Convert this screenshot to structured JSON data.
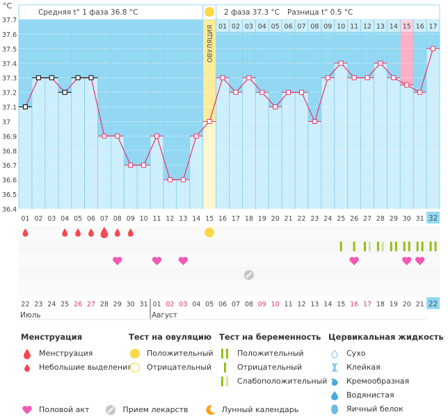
{
  "chart_data": {
    "type": "line",
    "title": "",
    "ylabel": "°C",
    "ylim": [
      36.4,
      37.7
    ],
    "yticks": [
      "37.7",
      "37.6",
      "37.5",
      "37.4",
      "37.3",
      "37.2",
      "37.1",
      "37",
      "36.9",
      "36.8",
      "36.7",
      "36.6",
      "36.5",
      "36.4"
    ],
    "cycle_days": [
      "01",
      "02",
      "03",
      "04",
      "05",
      "06",
      "07",
      "08",
      "09",
      "10",
      "11",
      "12",
      "13",
      "14",
      "15",
      "16",
      "17",
      "18",
      "19",
      "20",
      "21",
      "22",
      "23",
      "24",
      "25",
      "26",
      "27",
      "28",
      "29",
      "30",
      "31",
      "32"
    ],
    "dates": [
      "22",
      "23",
      "24",
      "25",
      "26",
      "27",
      "28",
      "29",
      "30",
      "31",
      "01",
      "02",
      "03",
      "04",
      "05",
      "06",
      "07",
      "08",
      "09",
      "10",
      "11",
      "12",
      "13",
      "14",
      "15",
      "16",
      "17",
      "18",
      "19",
      "20",
      "21",
      "22"
    ],
    "weekend_dates_idx": [
      4,
      5,
      11,
      12,
      18,
      19,
      25,
      26
    ],
    "months": [
      {
        "label": "Июль",
        "start_idx": 0
      },
      {
        "label": "Август",
        "start_idx": 10
      }
    ],
    "series": [
      {
        "name": "Температура",
        "values": [
          37.1,
          37.3,
          37.3,
          37.2,
          37.3,
          37.3,
          36.9,
          36.9,
          36.7,
          36.7,
          36.9,
          36.6,
          36.6,
          36.9,
          37.0,
          37.3,
          37.2,
          37.3,
          37.2,
          37.1,
          37.2,
          37.2,
          37.0,
          37.3,
          37.4,
          37.3,
          37.3,
          37.4,
          37.3,
          37.25,
          37.2,
          37.5
        ],
        "excluded_idx": [
          0,
          1,
          2,
          3,
          4,
          5
        ]
      }
    ],
    "ovulation_day_idx": 14,
    "ovulation_label": "ОВУЛЯЦИЯ",
    "phase2_days": [
      "01",
      "02",
      "03",
      "04",
      "05",
      "06",
      "07",
      "08",
      "09",
      "10",
      "11",
      "12",
      "13",
      "14",
      "15",
      "16",
      "17"
    ],
    "phase2_highlight_idx": 14,
    "current_day_idx": 31,
    "phase1_summary": "Средняя t° 1 фаза 36.8 °C",
    "phase2_summary": "2 фаза 37.3 °C",
    "diff_summary": "Разница t° 0.5 °C",
    "events": {
      "menstruation": [
        {
          "idx": 0,
          "type": "light"
        },
        {
          "idx": 3,
          "type": "light"
        },
        {
          "idx": 4,
          "type": "light"
        },
        {
          "idx": 5,
          "type": "light"
        },
        {
          "idx": 6,
          "type": "heavy"
        },
        {
          "idx": 7,
          "type": "light"
        },
        {
          "idx": 8,
          "type": "light"
        }
      ],
      "ovulation_test": [
        {
          "idx": 14,
          "result": "positive"
        }
      ],
      "pregnancy_test": [
        {
          "idx": 24,
          "result": "negative"
        },
        {
          "idx": 25,
          "result": "negative"
        },
        {
          "idx": 26,
          "result": "weak"
        },
        {
          "idx": 27,
          "result": "weak"
        },
        {
          "idx": 28,
          "result": "positive"
        },
        {
          "idx": 29,
          "result": "positive"
        },
        {
          "idx": 30,
          "result": "positive"
        },
        {
          "idx": 31,
          "result": "positive"
        }
      ],
      "intercourse": [
        7,
        10,
        12,
        25,
        29,
        30
      ],
      "medication": [
        17
      ]
    }
  },
  "legend": {
    "menstruation": {
      "title": "Менструация",
      "items": [
        "Менструация",
        "Небольшие выделения"
      ]
    },
    "ovulation_test": {
      "title": "Тест на овуляцию",
      "items": [
        "Положительный",
        "Отрицательный"
      ]
    },
    "pregnancy_test": {
      "title": "Тест на беременность",
      "items": [
        "Положительный",
        "Отрицательный",
        "Слабоположительный"
      ]
    },
    "cervical_fluid": {
      "title": "Цервикальная жидкость",
      "items": [
        "Сухо",
        "Клейкая",
        "Кремообразная",
        "Водянистая",
        "Яичный белок"
      ]
    },
    "bottom": [
      "Половой акт",
      "Прием лекарств",
      "Лунный календарь"
    ]
  },
  "colors": {
    "bg_fill": "#93d8f3",
    "bar_fill": "#cdeefb",
    "line": "#e8336b",
    "ovulation_band": "#fbeb9a",
    "highlight_pink": "#fbafc5",
    "period": "#f24a50",
    "heart": "#f55ab4",
    "preg_green": "#8fbf14",
    "preg_light": "#cfe3a0",
    "ov_yellow": "#fbd84a",
    "weekend_red": "#e8336b",
    "current": "#93d8f3"
  }
}
